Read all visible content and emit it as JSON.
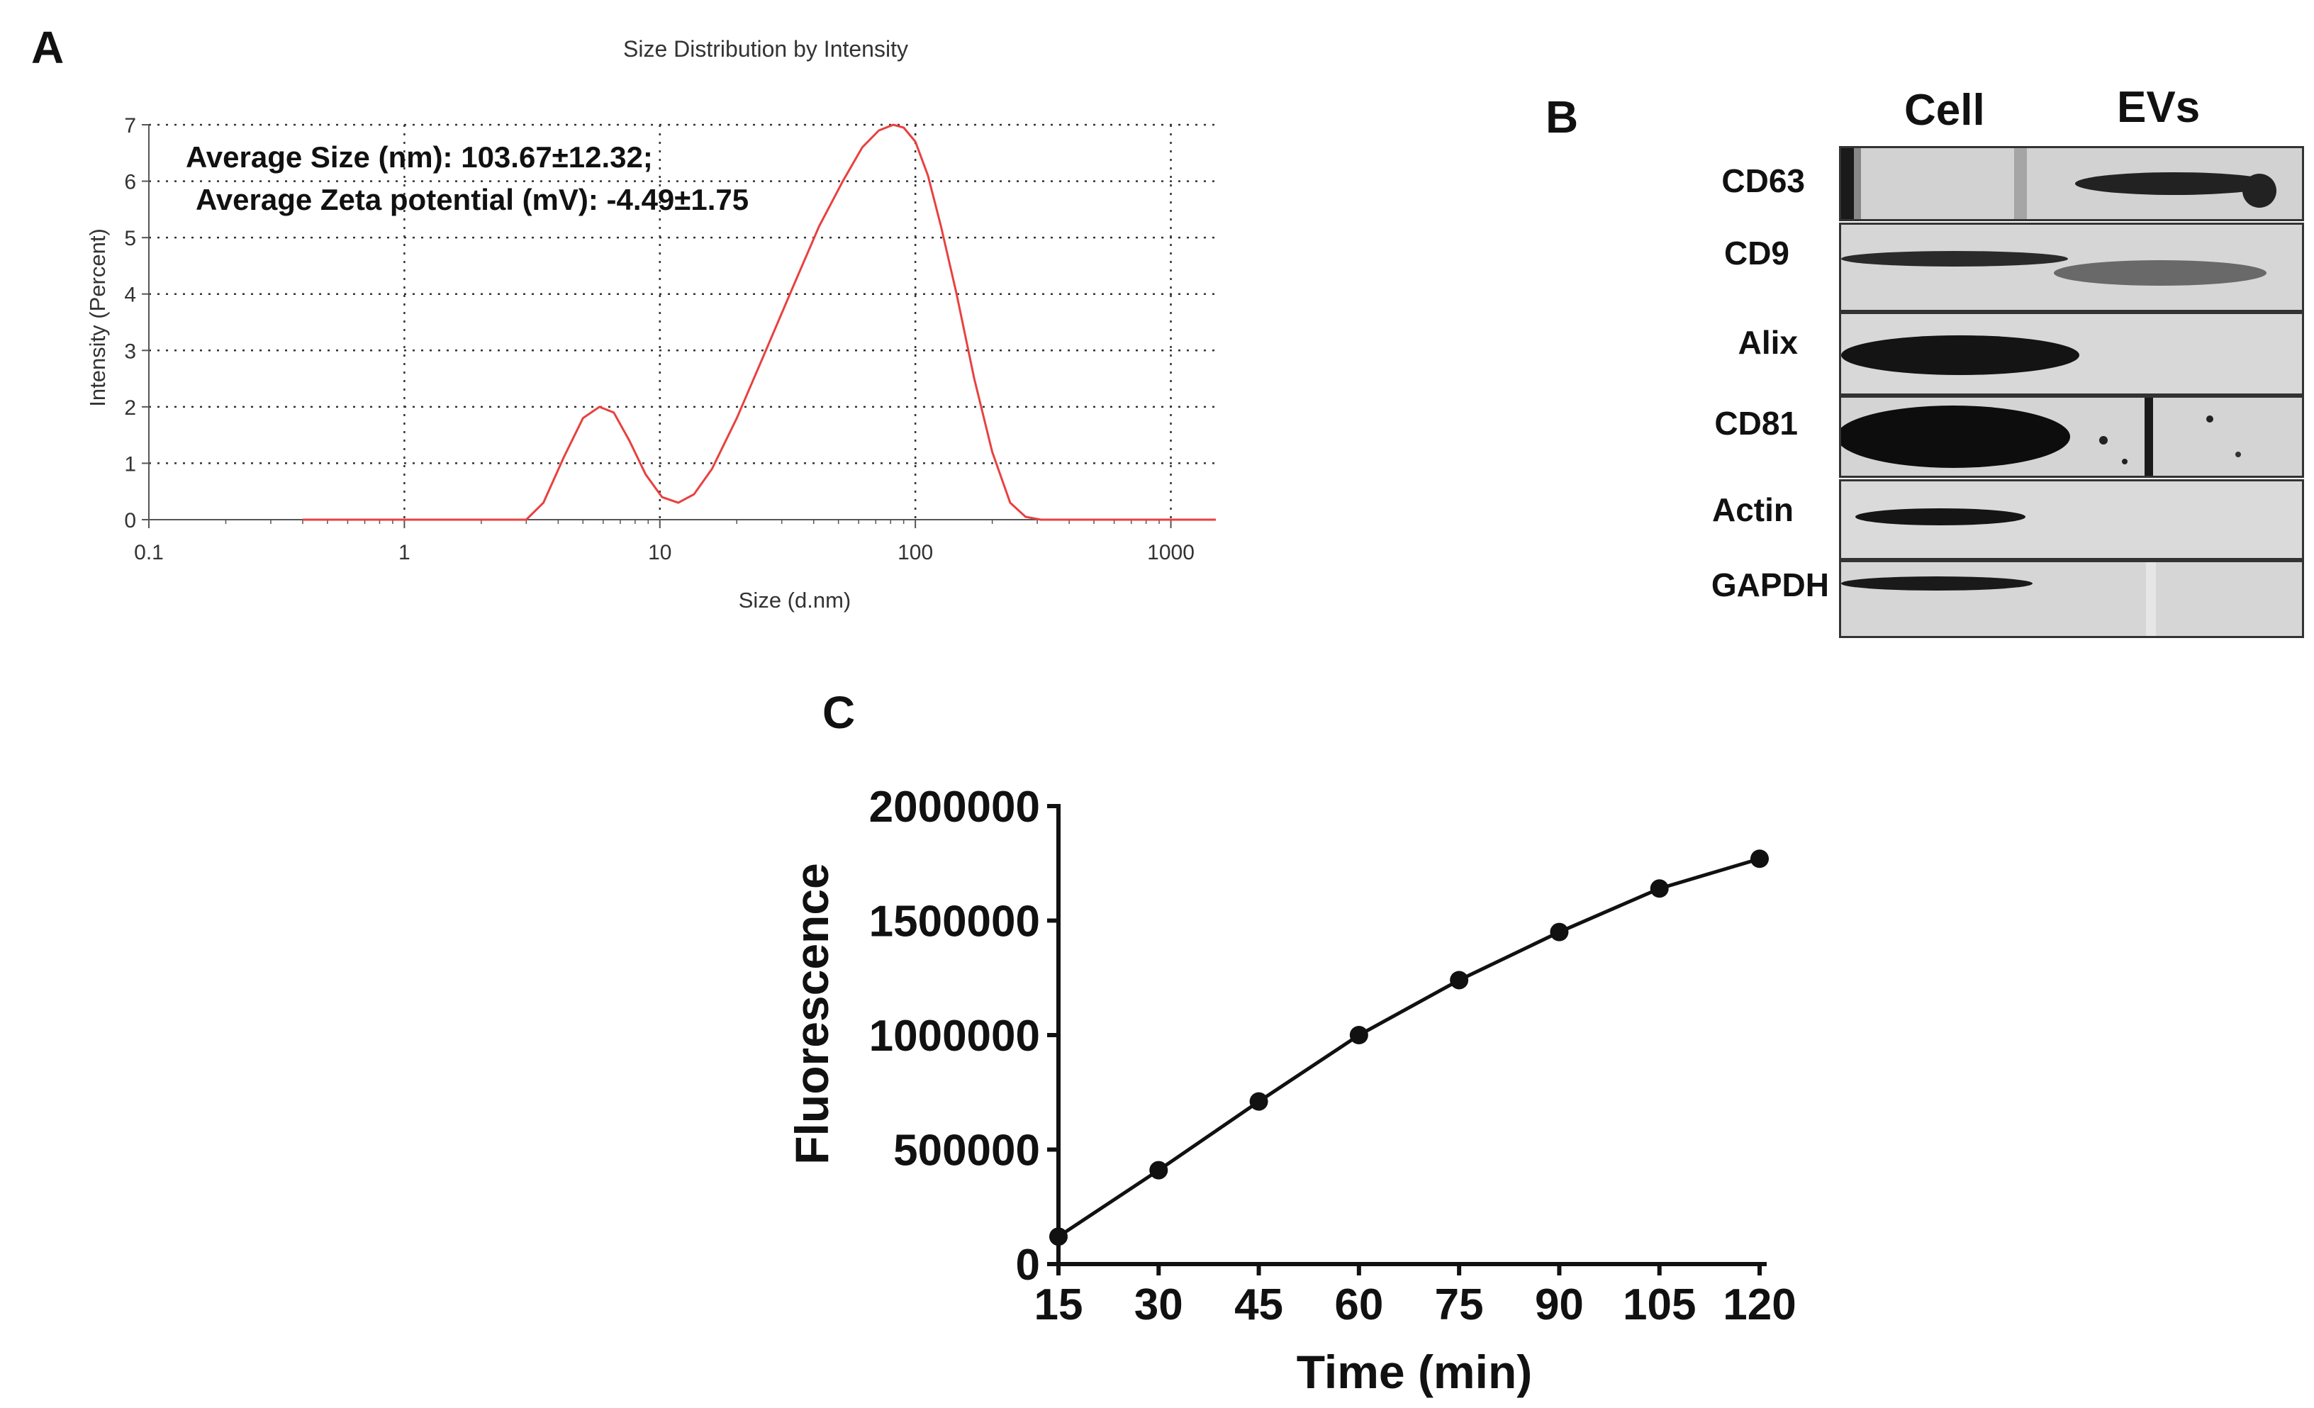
{
  "panels": {
    "a": {
      "label": "A"
    },
    "b": {
      "label": "B"
    },
    "c": {
      "label": "C"
    }
  },
  "chart_data": [
    {
      "id": "panel-a",
      "type": "line",
      "title": "Size Distribution by Intensity",
      "xlabel": "Size (d.nm)",
      "ylabel": "Intensity (Percent)",
      "xscale": "log",
      "xlim": [
        0.1,
        1500
      ],
      "ylim": [
        0,
        7
      ],
      "xticks": [
        "0.1",
        "1",
        "10",
        "100",
        "1000"
      ],
      "yticks": [
        "0",
        "1",
        "2",
        "3",
        "4",
        "5",
        "6",
        "7"
      ],
      "grid": true,
      "line_color": "#e8413f",
      "annotations": [
        "Average Size (nm): 103.67±12.32;",
        "Average Zeta potential (mV): -4.49±1.75"
      ],
      "series": [
        {
          "name": "Intensity",
          "x": [
            0.4,
            3.0,
            3.5,
            4.2,
            5.0,
            5.8,
            6.6,
            7.6,
            8.8,
            10.2,
            11.8,
            13.6,
            16,
            20,
            26,
            33,
            42,
            52,
            62,
            72,
            82,
            90,
            100,
            112,
            126,
            145,
            170,
            200,
            235,
            270,
            310,
            360,
            420
          ],
          "values": [
            0,
            0,
            0.3,
            1.1,
            1.8,
            2.0,
            1.9,
            1.4,
            0.8,
            0.4,
            0.3,
            0.45,
            0.9,
            1.8,
            3.0,
            4.1,
            5.2,
            6.0,
            6.6,
            6.9,
            7.0,
            6.95,
            6.7,
            6.1,
            5.2,
            4.0,
            2.5,
            1.2,
            0.3,
            0.05,
            0,
            0,
            0
          ]
        }
      ]
    },
    {
      "id": "panel-c",
      "type": "line",
      "title": "",
      "xlabel": "Time (min)",
      "ylabel": "Fluorescence",
      "xlim": [
        15,
        120
      ],
      "ylim": [
        0,
        2000000
      ],
      "xticks": [
        "15",
        "30",
        "45",
        "60",
        "75",
        "90",
        "105",
        "120"
      ],
      "yticks": [
        "0",
        "500000",
        "1000000",
        "1500000",
        "2000000"
      ],
      "grid": false,
      "series": [
        {
          "name": "Fluorescence",
          "x": [
            15,
            30,
            45,
            60,
            75,
            90,
            105,
            120
          ],
          "values": [
            120000,
            410000,
            710000,
            1000000,
            1240000,
            1450000,
            1640000,
            1770000
          ]
        }
      ]
    }
  ],
  "blot": {
    "lanes": [
      "Cell",
      "EVs"
    ],
    "proteins": [
      "CD63",
      "CD9",
      "Alix",
      "CD81",
      "Actin",
      "GAPDH"
    ]
  }
}
